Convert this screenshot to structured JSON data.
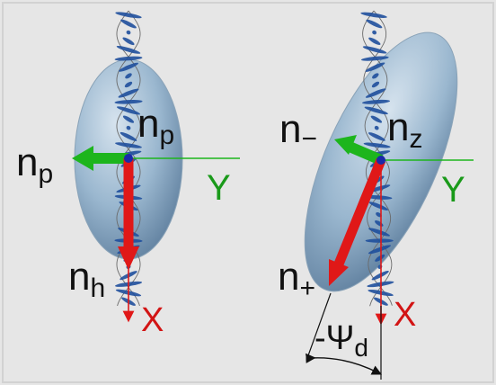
{
  "colors": {
    "background": "#e6e6e6",
    "frame": "#d2d2d2",
    "ellipsoid_light": "#d6e3ee",
    "ellipsoid_mid": "#9ab7cf",
    "ellipsoid_dark": "#5f7f9e",
    "molecule": "#1f4f9c",
    "helix": "#6a6a6a",
    "red_axis": "#e01818",
    "green_axis": "#1db51d",
    "label_dark": "#111111",
    "label_green": "#1a9a1a",
    "label_red": "#d21414",
    "origin": "#1a2aa8"
  },
  "left_panel": {
    "labels": {
      "np_outer": "n",
      "np_outer_sub": "p",
      "np_inner": "n",
      "np_inner_sub": "p",
      "nh": "n",
      "nh_sub": "h",
      "y_axis": "Y",
      "x_axis": "X"
    }
  },
  "right_panel": {
    "labels": {
      "n_minus": "n",
      "n_minus_sub": "−",
      "nz": "n",
      "nz_sub": "z",
      "n_plus": "n",
      "n_plus_sub": "+",
      "y_axis": "Y",
      "x_axis": "X",
      "angle_symbol": "-Ψ",
      "angle_sub": "d"
    }
  }
}
